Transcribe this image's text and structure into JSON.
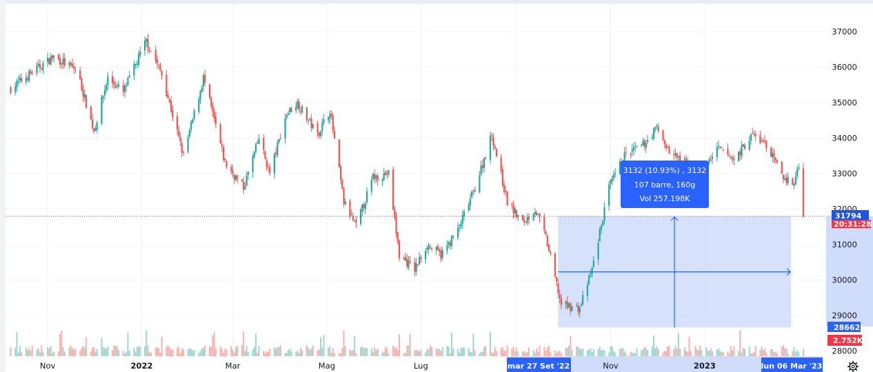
{
  "chart_data": {
    "type": "candlestick",
    "y_ticks": [
      37000,
      36000,
      35000,
      34000,
      33000,
      32000,
      31000,
      30000,
      29000,
      28000
    ],
    "y_tick_labels": [
      "37000",
      "36000",
      "35000",
      "34000",
      "33000",
      "32000",
      "31000",
      "30000",
      "29000",
      "28000"
    ],
    "ylim": [
      27850,
      37800
    ],
    "grid": true,
    "x_tick_labels": [
      "Nov",
      "2022",
      "Mar",
      "Mag",
      "Lug",
      "Set",
      "Nov",
      "2023"
    ],
    "x_tick_bold": [
      false,
      true,
      false,
      false,
      false,
      false,
      false,
      true
    ],
    "price_path": [
      [
        "2021-10-08",
        35400
      ],
      [
        "2021-10-20",
        35800
      ],
      [
        "2021-11-05",
        36300
      ],
      [
        "2021-11-20",
        35900
      ],
      [
        "2021-12-01",
        34200
      ],
      [
        "2021-12-10",
        35700
      ],
      [
        "2021-12-20",
        35300
      ],
      [
        "2022-01-04",
        36750
      ],
      [
        "2022-01-14",
        35800
      ],
      [
        "2022-01-28",
        33500
      ],
      [
        "2022-02-10",
        35700
      ],
      [
        "2022-02-24",
        33300
      ],
      [
        "2022-03-08",
        32600
      ],
      [
        "2022-03-18",
        34000
      ],
      [
        "2022-03-25",
        33000
      ],
      [
        "2022-04-05",
        34700
      ],
      [
        "2022-04-12",
        35000
      ],
      [
        "2022-04-25",
        34100
      ],
      [
        "2022-05-03",
        34800
      ],
      [
        "2022-05-12",
        32200
      ],
      [
        "2022-05-20",
        31500
      ],
      [
        "2022-05-31",
        32900
      ],
      [
        "2022-06-10",
        33000
      ],
      [
        "2022-06-17",
        30700
      ],
      [
        "2022-06-27",
        30300
      ],
      [
        "2022-07-05",
        31000
      ],
      [
        "2022-07-14",
        30700
      ],
      [
        "2022-07-25",
        31400
      ],
      [
        "2022-08-05",
        32600
      ],
      [
        "2022-08-16",
        34100
      ],
      [
        "2022-08-26",
        32200
      ],
      [
        "2022-09-05",
        31600
      ],
      [
        "2022-09-13",
        32000
      ],
      [
        "2022-09-20",
        31200
      ],
      [
        "2022-09-30",
        29300
      ],
      [
        "2022-10-12",
        29200
      ],
      [
        "2022-10-20",
        30300
      ],
      [
        "2022-10-31",
        32600
      ],
      [
        "2022-11-10",
        33500
      ],
      [
        "2022-11-22",
        33800
      ],
      [
        "2022-12-01",
        34300
      ],
      [
        "2022-12-09",
        33600
      ],
      [
        "2022-12-16",
        33400
      ],
      [
        "2022-12-28",
        33000
      ],
      [
        "2023-01-10",
        33700
      ],
      [
        "2023-01-20",
        33400
      ],
      [
        "2023-02-01",
        34100
      ],
      [
        "2023-02-10",
        33800
      ],
      [
        "2023-02-21",
        32900
      ],
      [
        "2023-02-28",
        32700
      ],
      [
        "2023-03-03",
        33300
      ],
      [
        "2023-03-06",
        31794
      ]
    ],
    "last_price": 31794
  },
  "price_axis": {
    "last_price_label": "31794",
    "countdown_label": "20:31:28",
    "range_low_label": "28662",
    "volume_label": "2.752K",
    "settings_icon": "gear-icon"
  },
  "date_range": {
    "start_label": "mar 27 Set '22",
    "end_label": "lun 06 Mar '23",
    "start_date": "2022-09-27",
    "end_date": "2023-03-06"
  },
  "measure": {
    "low": 28662,
    "high": 31794,
    "line1": "3132 (10.93%) , 3132",
    "line2": "107 barre, 160g",
    "line3": "Vol 257.198K"
  },
  "colors": {
    "up": "#26a69a",
    "down": "#ef5350",
    "accent": "#2962ff",
    "price_badge": "#1e53e5",
    "countdown_badge": "#f23645",
    "range_fill": "#cfdcfb",
    "grid": "#f0f3fa"
  }
}
